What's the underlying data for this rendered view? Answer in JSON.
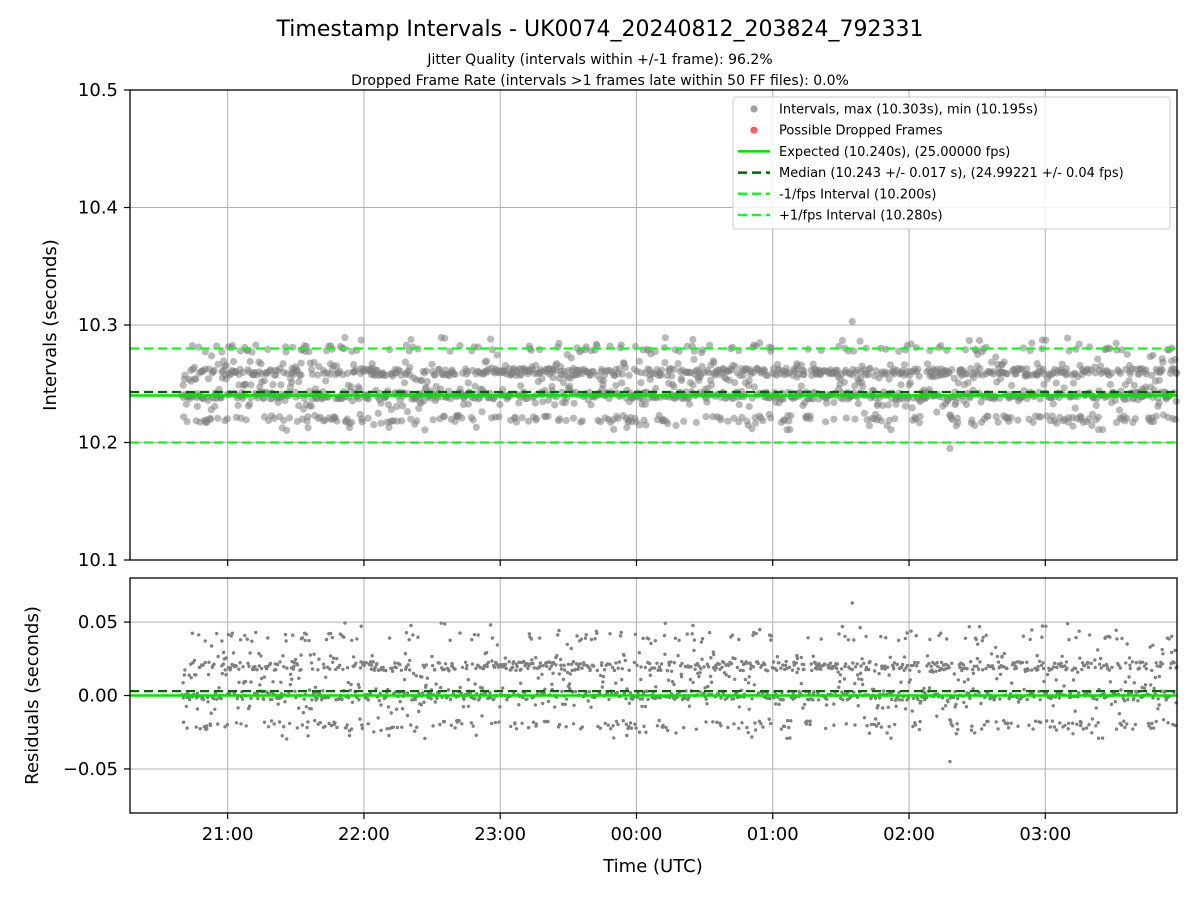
{
  "figure": {
    "title": "Timestamp Intervals - UK0074_20240812_203824_792331",
    "subtitle_1": "Jitter Quality (intervals within +/-1 frame): 96.2%",
    "subtitle_2": "Dropped Frame Rate (intervals >1 frames late within 50 FF files): 0.0%",
    "x_label": "Time (UTC)"
  },
  "colors": {
    "points": "#808080",
    "dropped": "#f06060",
    "expected": "#00e000",
    "median": "#006400",
    "bounds": "#22ee22",
    "grid": "#b0b0b0"
  },
  "chart_data": [
    {
      "type": "scatter",
      "name": "intervals",
      "ylabel": "Intervals (seconds)",
      "xlim": [
        "20:17",
        "03:58"
      ],
      "ylim": [
        10.1,
        10.5
      ],
      "x_ticks": [
        "21:00",
        "22:00",
        "23:00",
        "00:00",
        "01:00",
        "02:00",
        "03:00"
      ],
      "y_ticks": [
        "10.1",
        "10.2",
        "10.3",
        "10.4",
        "10.5"
      ],
      "y_tick_values": [
        10.1,
        10.2,
        10.3,
        10.4,
        10.5
      ],
      "grid": true,
      "legend_position": "top-right",
      "x_range": [
        "20:40",
        "03:58"
      ],
      "point_count": 1800,
      "level_values": [
        10.22,
        10.24,
        10.26,
        10.28
      ],
      "level_weights": [
        0.15,
        0.37,
        0.38,
        0.1
      ],
      "jitter": 0.012,
      "extremes": {
        "max": 10.303,
        "max_time": "01:35",
        "min": 10.195,
        "min_time": "02:18"
      },
      "reference_lines": {
        "expected": 10.24,
        "median": 10.243,
        "minus_one_frame": 10.2,
        "plus_one_frame": 10.28
      },
      "legend": [
        {
          "label": "Intervals, max (10.303s), min (10.195s)",
          "kind": "point",
          "color": "#a0a0a0"
        },
        {
          "label": "Possible Dropped Frames",
          "kind": "point",
          "color": "#f06060"
        },
        {
          "label": "Expected (10.240s), (25.00000 fps)",
          "kind": "solid",
          "color": "#00e000"
        },
        {
          "label": "Median (10.243 +/- 0.017 s), (24.99221 +/- 0.04 fps)",
          "kind": "dashed",
          "color": "#006400"
        },
        {
          "label": "-1/fps Interval (10.200s)",
          "kind": "dashed",
          "color": "#22ee22"
        },
        {
          "label": "+1/fps Interval (10.280s)",
          "kind": "dashed",
          "color": "#22ee22"
        }
      ]
    },
    {
      "type": "scatter",
      "name": "residuals",
      "ylabel": "Residuals (seconds)",
      "xlabel": "Time (UTC)",
      "xlim": [
        "20:17",
        "03:58"
      ],
      "ylim": [
        -0.08,
        0.08
      ],
      "x_ticks": [
        "21:00",
        "22:00",
        "23:00",
        "00:00",
        "01:00",
        "02:00",
        "03:00"
      ],
      "y_ticks": [
        "0.05",
        "0.00",
        "−0.05"
      ],
      "y_tick_values": [
        0.05,
        0.0,
        -0.05
      ],
      "grid": true,
      "reference_lines": {
        "zero": 0.0,
        "median_offset": 0.003
      }
    }
  ]
}
